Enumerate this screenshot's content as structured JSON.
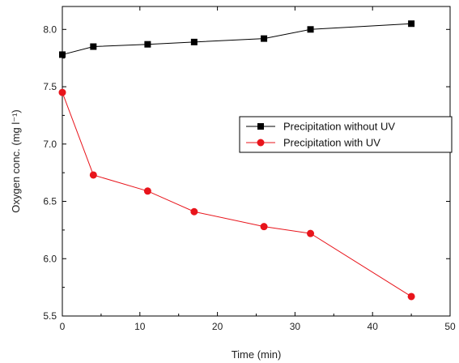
{
  "chart_data": {
    "type": "line",
    "xlabel": "Time (min)",
    "ylabel": "Oxygen conc. (mg l⁻¹)",
    "xlim": [
      0,
      50
    ],
    "ylim": [
      5.5,
      8.2
    ],
    "x_ticks": [
      0,
      10,
      20,
      30,
      40,
      50
    ],
    "y_ticks": [
      5.5,
      6.0,
      6.5,
      7.0,
      7.5,
      8.0
    ],
    "x_tick_labels": [
      "0",
      "10",
      "20",
      "30",
      "40",
      "50"
    ],
    "y_tick_labels": [
      "5.5",
      "6.0",
      "6.5",
      "7.0",
      "7.5",
      "8.0"
    ],
    "grid": false,
    "legend_position": "right",
    "series": [
      {
        "name": "Precipitation without UV",
        "marker": "square",
        "color": "#000000",
        "x": [
          0,
          4,
          11,
          17,
          26,
          32,
          45
        ],
        "y": [
          7.78,
          7.85,
          7.87,
          7.89,
          7.92,
          8.0,
          8.05
        ]
      },
      {
        "name": "Precipitation with UV",
        "marker": "circle",
        "color": "#e8141b",
        "x": [
          0,
          4,
          11,
          17,
          26,
          32,
          45
        ],
        "y": [
          7.45,
          6.73,
          6.59,
          6.41,
          6.28,
          6.22,
          5.67
        ]
      }
    ]
  }
}
